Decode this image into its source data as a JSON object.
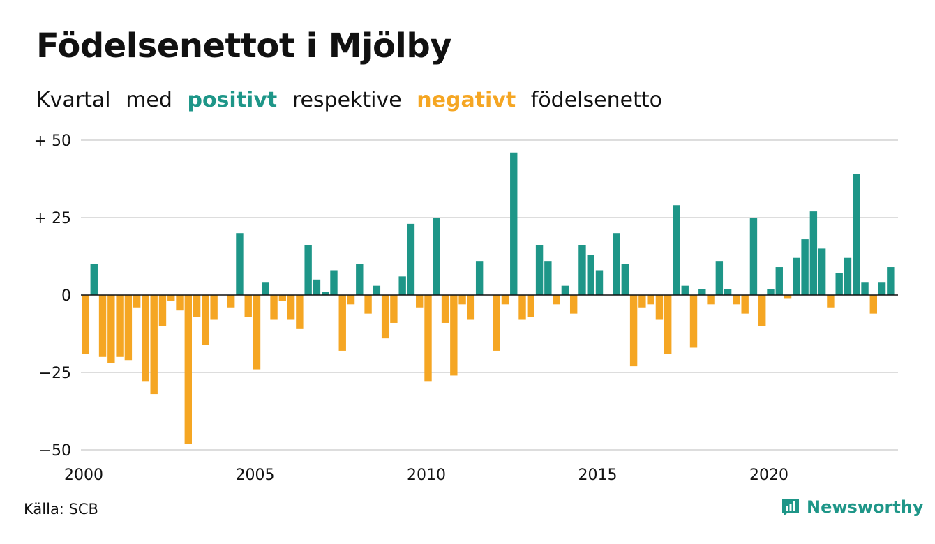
{
  "title": "Födelsenettot i Mjölby",
  "subtitle": {
    "part1": "Kvartal",
    "part2": "med",
    "positive": "positivt",
    "part3": "respektive",
    "negative": "negativt",
    "part4": "födelsenetto"
  },
  "source": "Källa: SCB",
  "brand": {
    "name": "Newsworthy",
    "icon": "newsworthy-logo-icon"
  },
  "colors": {
    "positive": "#1e9688",
    "negative": "#f5a623",
    "grid": "#dddddd",
    "zero": "#111111"
  },
  "chart_data": {
    "type": "bar",
    "x_start": 2000,
    "x_step": 0.25,
    "ylim": [
      -50,
      50
    ],
    "ytick_values": [
      50,
      25,
      0,
      -25,
      -50
    ],
    "ytick_labels": [
      "+ 50",
      "+ 25",
      "0",
      "−25",
      "−50"
    ],
    "xtick_values": [
      2000,
      2005,
      2010,
      2015,
      2020
    ],
    "xtick_labels": [
      "2000",
      "2005",
      "2010",
      "2015",
      "2020"
    ],
    "grid": true,
    "values": [
      -19,
      10,
      -20,
      -22,
      -20,
      -21,
      -4,
      -28,
      -32,
      -10,
      -2,
      -5,
      -48,
      -7,
      -16,
      -8,
      0,
      -4,
      20,
      -7,
      -24,
      4,
      -8,
      -2,
      -8,
      -11,
      16,
      5,
      1,
      8,
      -18,
      -3,
      10,
      -6,
      3,
      -14,
      -9,
      6,
      23,
      -4,
      -28,
      25,
      -9,
      -26,
      -3,
      -8,
      11,
      0,
      -18,
      -3,
      46,
      -8,
      -7,
      16,
      11,
      -3,
      3,
      -6,
      16,
      13,
      8,
      0,
      20,
      10,
      -23,
      -4,
      -3,
      -8,
      -19,
      29,
      3,
      -17,
      2,
      -3,
      11,
      2,
      -3,
      -6,
      25,
      -10,
      2,
      9,
      -1,
      12,
      18,
      27,
      15,
      -4,
      7,
      12,
      39,
      4,
      -6,
      4,
      9
    ]
  }
}
